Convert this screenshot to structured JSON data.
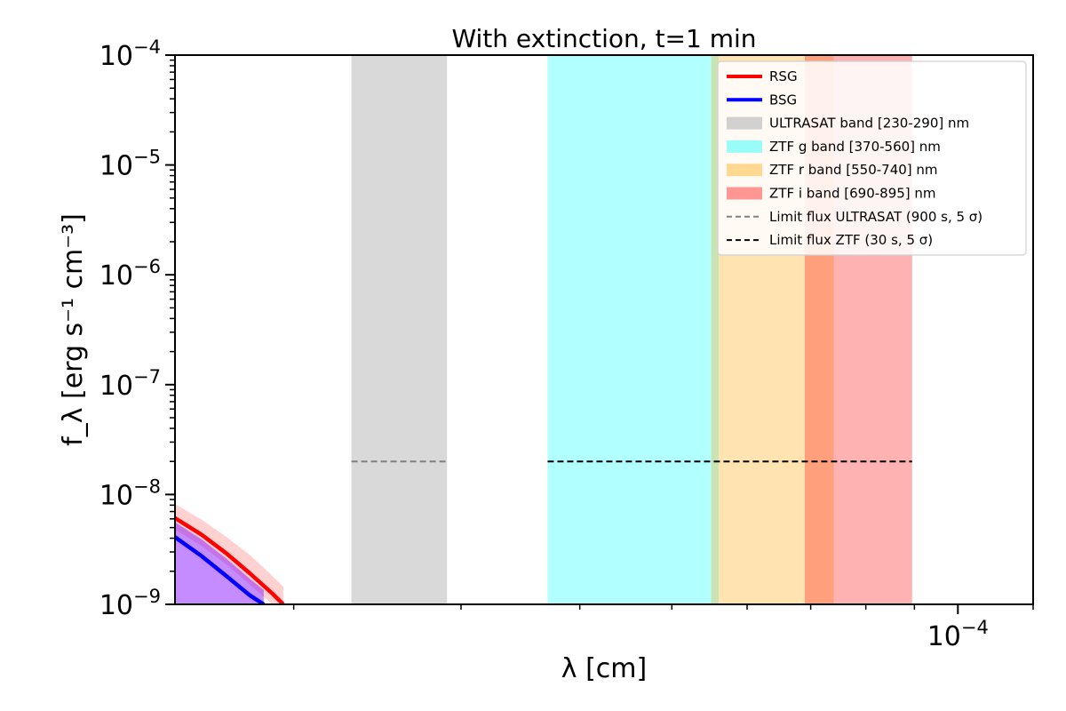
{
  "chart_data": {
    "type": "line",
    "title": "With extinction, t=1 min",
    "xlabel": "λ [cm]",
    "ylabel": "f_λ [erg s⁻¹ cm⁻³]",
    "xscale": "log",
    "yscale": "log",
    "xlim": [
      1.5e-05,
      0.00012
    ],
    "ylim": [
      1e-09,
      0.0001
    ],
    "x_tick_labels": [
      {
        "value": 0.0001,
        "base": "10",
        "exp": "−4"
      }
    ],
    "x_minor_ticks": [
      2e-05,
      3e-05,
      4e-05,
      5e-05,
      6e-05,
      7e-05,
      8e-05,
      9e-05,
      0.00012
    ],
    "y_tick_labels": [
      {
        "value": 0.0001,
        "base": "10",
        "exp": "−4"
      },
      {
        "value": 1e-05,
        "base": "10",
        "exp": "−5"
      },
      {
        "value": 1e-06,
        "base": "10",
        "exp": "−6"
      },
      {
        "value": 1e-07,
        "base": "10",
        "exp": "−7"
      },
      {
        "value": 1e-08,
        "base": "10",
        "exp": "−8"
      },
      {
        "value": 1e-09,
        "base": "10",
        "exp": "−9"
      }
    ],
    "grid": false,
    "legend_position": "top-right",
    "bands": [
      {
        "name": "ULTRASAT band [230-290] nm",
        "x0": 2.3e-05,
        "x1": 2.9e-05,
        "color": "#bfbfbf",
        "opacity": 0.6
      },
      {
        "name": "ZTF g band [370-560] nm",
        "x0": 3.7e-05,
        "x1": 5.6e-05,
        "color": "#00ffff",
        "opacity": 0.3
      },
      {
        "name": "ZTF r band [550-740] nm",
        "x0": 5.5e-05,
        "x1": 7.4e-05,
        "color": "#ffa500",
        "opacity": 0.3
      },
      {
        "name": "ZTF i band [690-895] nm",
        "x0": 6.9e-05,
        "x1": 8.95e-05,
        "color": "#ff0000",
        "opacity": 0.3
      }
    ],
    "limits": [
      {
        "name": "Limit flux ULTRASAT (900 s, 5 σ)",
        "x0": 2.3e-05,
        "x1": 2.9e-05,
        "y": 2e-08,
        "color": "#808080"
      },
      {
        "name": "Limit flux ZTF (30 s, 5 σ)",
        "x0": 3.7e-05,
        "x1": 8.95e-05,
        "y": 2e-08,
        "color": "#000000"
      }
    ],
    "series": [
      {
        "name": "RSG",
        "color": "#ff0000",
        "band_color": "#ff9999",
        "x": [
          1.5e-05,
          1.6e-05,
          1.7e-05,
          1.8e-05,
          1.9e-05,
          1.95e-05
        ],
        "y": [
          6.1e-09,
          4.3e-09,
          2.9e-09,
          1.9e-09,
          1.25e-09,
          1e-09
        ],
        "upper": [
          8.2e-09,
          5.9e-09,
          4.1e-09,
          2.8e-09,
          1.8e-09,
          1.45e-09
        ],
        "lower": [
          4.8e-09,
          3.4e-09,
          2.3e-09,
          1.5e-09,
          1e-09,
          1e-09
        ]
      },
      {
        "name": "BSG",
        "color": "#0000ff",
        "band_color": "#7f00ff",
        "x": [
          1.5e-05,
          1.6e-05,
          1.7e-05,
          1.8e-05,
          1.86e-05
        ],
        "y": [
          4.1e-09,
          2.75e-09,
          1.8e-09,
          1.2e-09,
          1e-09
        ],
        "upper": [
          5.6e-09,
          3.9e-09,
          2.6e-09,
          1.7e-09,
          1.35e-09
        ],
        "lower": [
          1e-09,
          1e-09,
          1e-09,
          1e-09,
          1e-09
        ]
      }
    ]
  }
}
